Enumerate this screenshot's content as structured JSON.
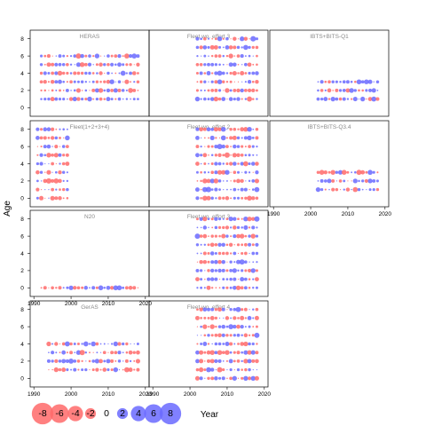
{
  "chart_data": {
    "type": "scatter",
    "ylabel": "Age",
    "xlabel": "Year",
    "x_ticks": [
      1990,
      2000,
      2010,
      2020
    ],
    "y_ticks": [
      0,
      2,
      4,
      6,
      8
    ],
    "xlim": [
      1989,
      2021
    ],
    "ylim": [
      -1,
      9
    ],
    "series_colors": {
      "negative": "#ff6a6a",
      "positive": "#6a6aff"
    },
    "panels": [
      {
        "title": "HERAS",
        "years": [
          1992,
          2018
        ],
        "ages": [
          1,
          2,
          3,
          4,
          5,
          6
        ]
      },
      {
        "title": "Fleet wo. effort 3",
        "years": [
          2002,
          2018
        ],
        "ages": [
          1,
          2,
          3,
          4,
          5,
          6,
          7,
          8
        ]
      },
      {
        "title": "IBTS+BITS-Q1",
        "years": [
          2002,
          2018
        ],
        "ages": [
          1,
          2,
          3
        ]
      },
      {
        "title": "Fleet(1+2+3+4)",
        "years": [
          1991,
          1999
        ],
        "ages": [
          0,
          1,
          2,
          3,
          4,
          5,
          6,
          7,
          8
        ]
      },
      {
        "title": "Fleet wo. effort 2",
        "years": [
          2002,
          2018
        ],
        "ages": [
          0,
          1,
          2,
          3,
          4,
          5,
          6,
          7,
          8
        ]
      },
      {
        "title": "IBTS+BITS-Q3.4",
        "years": [
          2002,
          2018
        ],
        "ages": [
          1,
          2,
          3
        ]
      },
      {
        "title": "N20",
        "years": [
          1992,
          2018
        ],
        "ages": [
          0
        ]
      },
      {
        "title": "Fleet wo. effort 3",
        "years": [
          2002,
          2018
        ],
        "ages": [
          0,
          1,
          2,
          3,
          4,
          5,
          6,
          7,
          8
        ]
      },
      {
        "title": "GerAS",
        "years": [
          1994,
          2018
        ],
        "ages": [
          1,
          2,
          3,
          4
        ]
      },
      {
        "title": "Fleet wo. effort 4",
        "years": [
          2002,
          2018
        ],
        "ages": [
          0,
          1,
          2,
          3,
          4,
          5,
          6,
          7,
          8
        ]
      }
    ],
    "legend": {
      "values": [
        -8,
        -6,
        -4,
        -2,
        0,
        2,
        4,
        6,
        8
      ]
    }
  }
}
